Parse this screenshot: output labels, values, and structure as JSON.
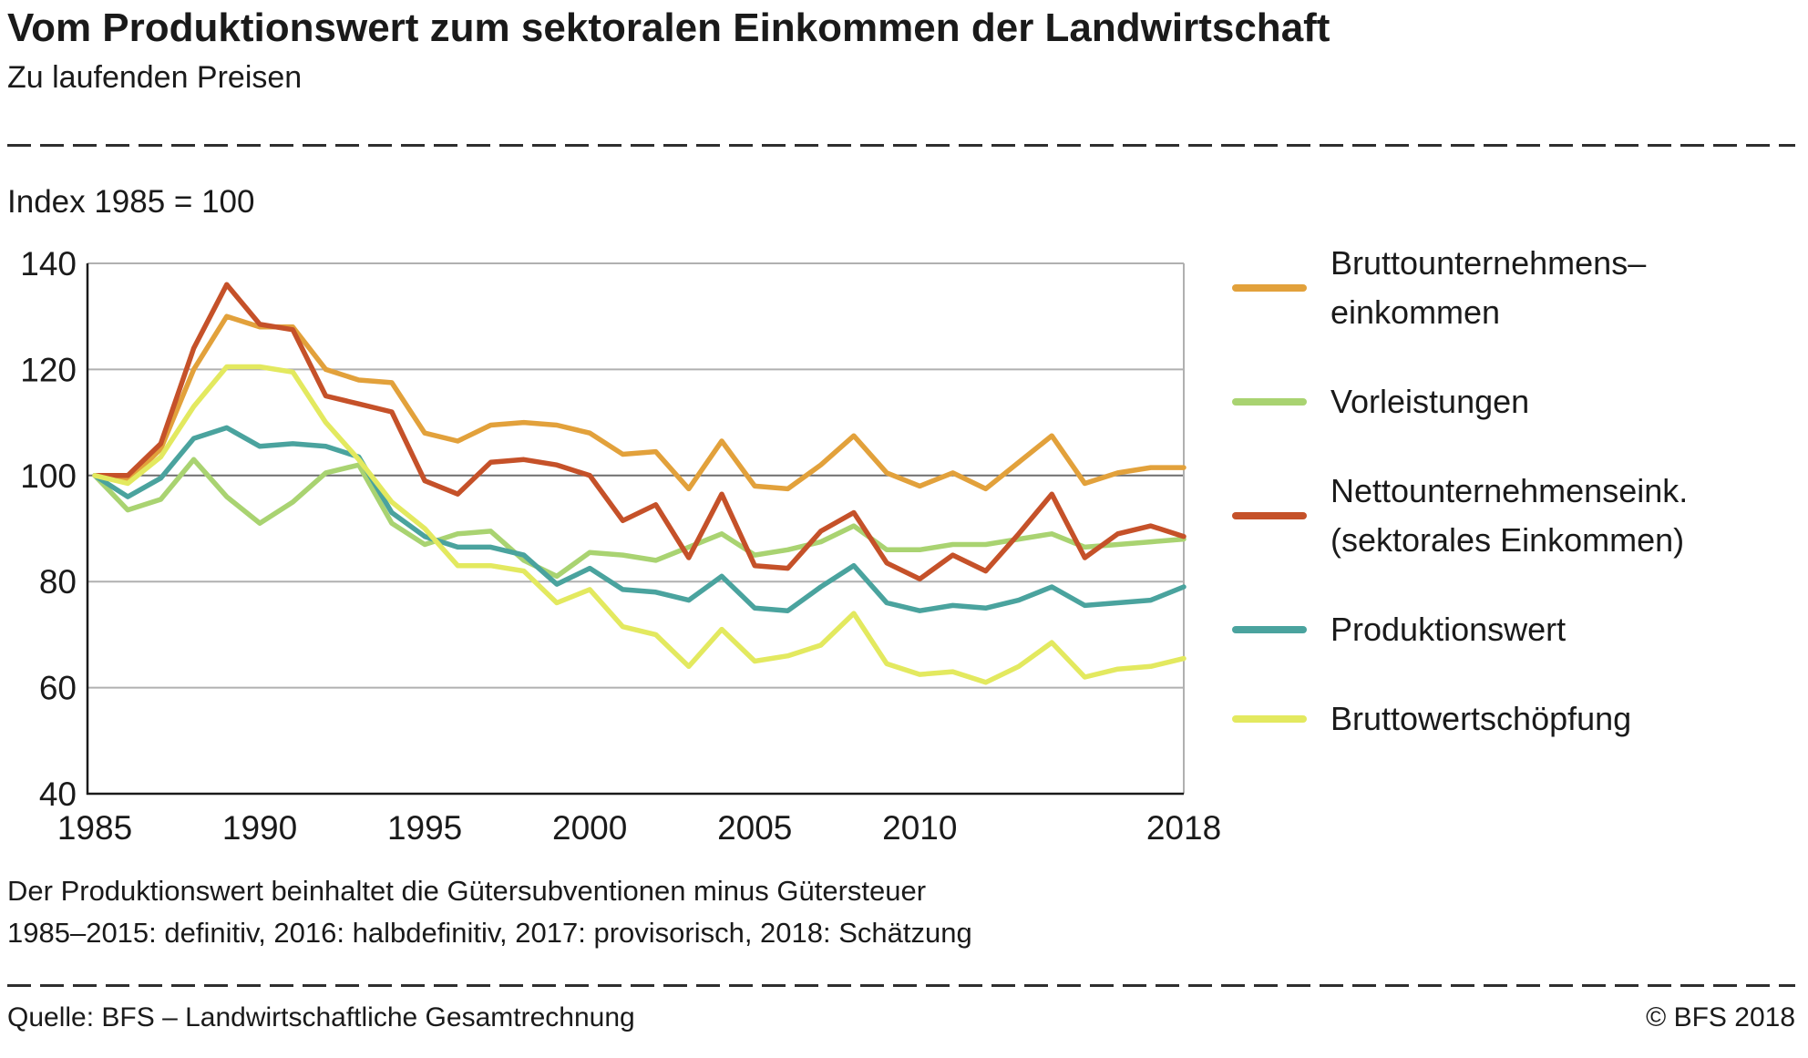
{
  "header": {
    "title": "Vom Produktionswert zum sektoralen Einkommen der Landwirtschaft",
    "subtitle": "Zu laufenden Preisen"
  },
  "chart_data": {
    "type": "line",
    "title": "Vom Produktionswert zum sektoralen Einkommen der Landwirtschaft",
    "subtitle": "Zu laufenden Preisen",
    "index_label": "Index 1985 = 100",
    "x": [
      1985,
      1986,
      1987,
      1988,
      1989,
      1990,
      1991,
      1992,
      1993,
      1994,
      1995,
      1996,
      1997,
      1998,
      1999,
      2000,
      2001,
      2002,
      2003,
      2004,
      2005,
      2006,
      2007,
      2008,
      2009,
      2010,
      2011,
      2012,
      2013,
      2014,
      2015,
      2016,
      2017,
      2018
    ],
    "xticks": [
      1985,
      1990,
      1995,
      2000,
      2005,
      2010,
      2018
    ],
    "ylim": [
      40,
      140
    ],
    "yticks": [
      40,
      60,
      80,
      100,
      120,
      140
    ],
    "emphasized_gridline": 100,
    "grid": true,
    "legend_position": "right",
    "series": [
      {
        "id": "bruttounternehmenseinkommen",
        "name": "Bruttounternehmenseinkommen",
        "label": "Bruttounternehmens–\neinkommen",
        "color": "#e2a13b",
        "values": [
          100,
          99,
          105,
          120,
          130,
          128,
          128,
          120,
          118,
          117.5,
          108,
          106.5,
          109.5,
          110,
          109.5,
          108,
          104,
          104.5,
          97.5,
          106.5,
          98,
          97.5,
          102,
          107.5,
          100.5,
          98,
          100.5,
          97.5,
          102.5,
          107.5,
          98.5,
          100.5,
          101.5,
          101.5
        ]
      },
      {
        "id": "vorleistungen",
        "name": "Vorleistungen",
        "label": "Vorleistungen",
        "color": "#a9d371",
        "values": [
          100,
          93.5,
          95.5,
          103,
          96,
          91,
          95,
          100.5,
          102,
          91,
          87,
          89,
          89.5,
          84,
          81,
          85.5,
          85,
          84,
          86.5,
          89,
          85,
          86,
          87.5,
          90.5,
          86,
          86,
          87,
          87,
          88,
          89,
          86.5,
          87,
          87.5,
          88
        ]
      },
      {
        "id": "nettounternehmenseinkommen",
        "name": "Nettounternehmenseink. (sektorales Einkommen)",
        "label": "Nettounternehmenseink.\n(sektorales Einkommen)",
        "color": "#c55129",
        "values": [
          100,
          100,
          106,
          124,
          136,
          128.5,
          127.5,
          115,
          113.5,
          112,
          99,
          96.5,
          102.5,
          103,
          102,
          100,
          91.5,
          94.5,
          84.5,
          96.5,
          83,
          82.5,
          89.5,
          93,
          83.5,
          80.5,
          85,
          82,
          89,
          96.5,
          84.5,
          89,
          90.5,
          88.5
        ]
      },
      {
        "id": "produktionswert",
        "name": "Produktionswert",
        "label": "Produktionswert",
        "color": "#4aa39e",
        "values": [
          100,
          96,
          99.5,
          107,
          109,
          105.5,
          106,
          105.5,
          103.5,
          93,
          88.5,
          86.5,
          86.5,
          85,
          79.5,
          82.5,
          78.5,
          78,
          76.5,
          81,
          75,
          74.5,
          79,
          83,
          76,
          74.5,
          75.5,
          75,
          76.5,
          79,
          75.5,
          76,
          76.5,
          79
        ]
      },
      {
        "id": "bruttowertschoepfung",
        "name": "Bruttowertschöpfung",
        "label": "Bruttowertschöpfung",
        "color": "#e3e95f",
        "values": [
          100,
          98.5,
          103.5,
          113,
          120.5,
          120.5,
          119.5,
          110,
          103,
          95,
          90,
          83,
          83,
          82,
          76,
          78.5,
          71.5,
          70,
          64,
          71,
          65,
          66,
          68,
          74,
          64.5,
          62.5,
          63,
          61,
          64,
          68.5,
          62,
          63.5,
          64,
          65.5
        ]
      }
    ],
    "colors": {
      "gridline": "#b0b0b0",
      "gridline_emphasized": "#6e6e6e",
      "axis": "#1a1a1a"
    }
  },
  "footnotes": {
    "line1": "Der Produktionswert beinhaltet die Gütersubventionen minus Gütersteuer",
    "line2": "1985–2015: definitiv, 2016: halbdefinitiv, 2017: provisorisch, 2018: Schätzung"
  },
  "footer": {
    "source": "Quelle: BFS – Landwirtschaftliche Gesamtrechnung",
    "copyright": "© BFS 2018"
  }
}
